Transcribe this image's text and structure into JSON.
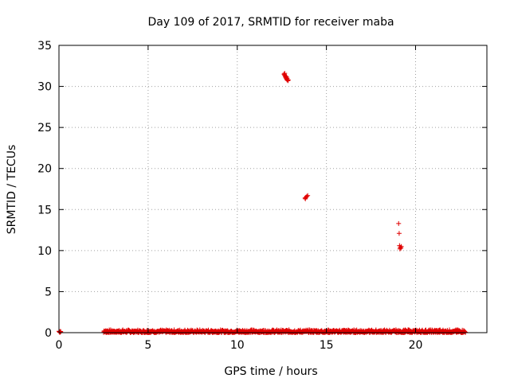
{
  "chart_data": {
    "type": "scatter",
    "title": "Day 109 of 2017, SRMTID for receiver maba",
    "xlabel": "GPS time / hours",
    "ylabel": "SRMTID / TECUs",
    "xlim": [
      0,
      24
    ],
    "ylim": [
      0,
      35
    ],
    "xticks": [
      0,
      5,
      10,
      15,
      20
    ],
    "yticks": [
      0,
      5,
      10,
      15,
      20,
      25,
      30,
      35
    ],
    "grid": true,
    "marker": "plus",
    "color": "#e00000",
    "series": [
      {
        "name": "SRMTID",
        "baseline": {
          "x_ranges": [
            [
              0.0,
              0.1
            ],
            [
              2.5,
              22.8
            ]
          ],
          "y_min": 0.0,
          "y_max": 0.35
        },
        "points": [
          {
            "x": 12.62,
            "y": 31.5
          },
          {
            "x": 12.65,
            "y": 31.4
          },
          {
            "x": 12.68,
            "y": 31.3
          },
          {
            "x": 12.7,
            "y": 31.2
          },
          {
            "x": 12.72,
            "y": 31.1
          },
          {
            "x": 12.74,
            "y": 31.0
          },
          {
            "x": 12.77,
            "y": 30.9
          },
          {
            "x": 12.79,
            "y": 30.8
          },
          {
            "x": 12.82,
            "y": 30.8
          },
          {
            "x": 12.84,
            "y": 30.7
          },
          {
            "x": 12.66,
            "y": 31.6
          },
          {
            "x": 12.76,
            "y": 31.2
          },
          {
            "x": 12.8,
            "y": 31.0
          },
          {
            "x": 12.86,
            "y": 30.8
          },
          {
            "x": 13.8,
            "y": 16.4
          },
          {
            "x": 13.85,
            "y": 16.5
          },
          {
            "x": 13.9,
            "y": 16.6
          },
          {
            "x": 13.95,
            "y": 16.7
          },
          {
            "x": 13.82,
            "y": 16.3
          },
          {
            "x": 19.05,
            "y": 13.3
          },
          {
            "x": 19.08,
            "y": 12.1
          },
          {
            "x": 19.1,
            "y": 10.6
          },
          {
            "x": 19.14,
            "y": 10.4
          },
          {
            "x": 19.18,
            "y": 10.3
          },
          {
            "x": 19.12,
            "y": 10.2
          },
          {
            "x": 19.2,
            "y": 10.5
          }
        ]
      }
    ]
  }
}
